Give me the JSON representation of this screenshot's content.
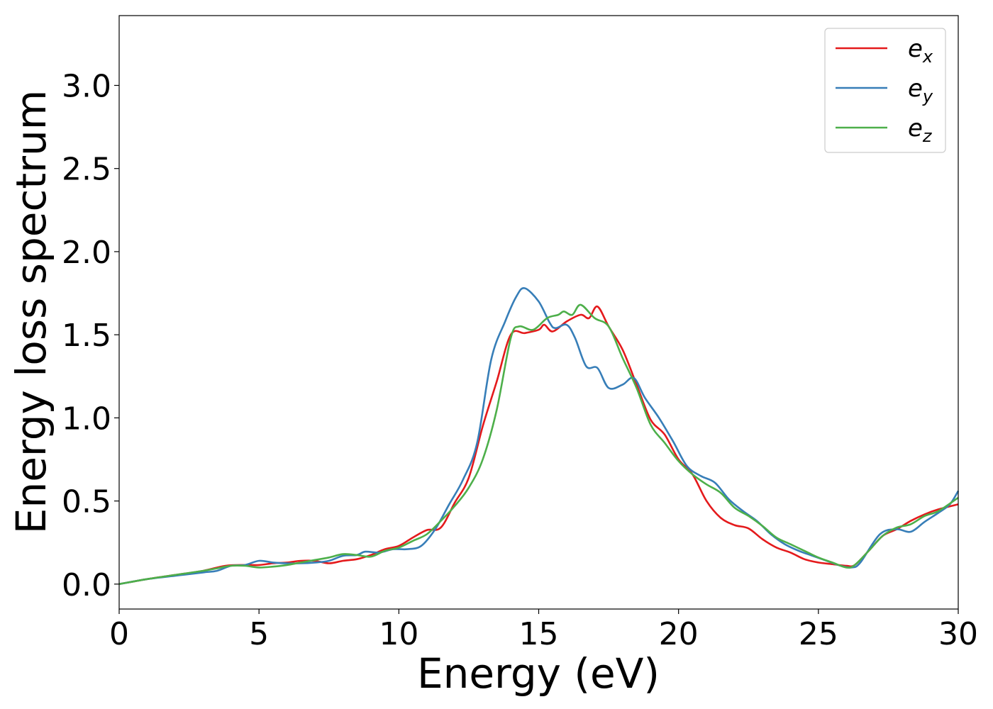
{
  "chart_data": {
    "type": "line",
    "xlabel": "Energy (eV)",
    "ylabel": "Energy loss spectrum",
    "xlim": [
      0,
      30
    ],
    "ylim": [
      -0.15,
      3.42
    ],
    "xticks": [
      0,
      5,
      10,
      15,
      20,
      25,
      30
    ],
    "xtick_labels": [
      "0",
      "5",
      "10",
      "15",
      "20",
      "25",
      "30"
    ],
    "yticks": [
      0.0,
      0.5,
      1.0,
      1.5,
      2.0,
      2.5,
      3.0
    ],
    "ytick_labels": [
      "0.0",
      "0.5",
      "1.0",
      "1.5",
      "2.0",
      "2.5",
      "3.0"
    ],
    "grid": false,
    "legend_position": "top-right",
    "series": [
      {
        "name": "e",
        "subscript": "x",
        "color": "#e41a1c",
        "points": [
          [
            0,
            0
          ],
          [
            1,
            0.03
          ],
          [
            2,
            0.055
          ],
          [
            3,
            0.08
          ],
          [
            3.8,
            0.11
          ],
          [
            4.5,
            0.115
          ],
          [
            5,
            0.115
          ],
          [
            5.5,
            0.125
          ],
          [
            6,
            0.13
          ],
          [
            6.5,
            0.14
          ],
          [
            7,
            0.14
          ],
          [
            7.5,
            0.125
          ],
          [
            8,
            0.14
          ],
          [
            8.5,
            0.15
          ],
          [
            9,
            0.175
          ],
          [
            9.5,
            0.21
          ],
          [
            10,
            0.23
          ],
          [
            10.5,
            0.28
          ],
          [
            11,
            0.325
          ],
          [
            11.5,
            0.34
          ],
          [
            12,
            0.49
          ],
          [
            12.5,
            0.64
          ],
          [
            13,
            0.95
          ],
          [
            13.5,
            1.22
          ],
          [
            14,
            1.5
          ],
          [
            14.5,
            1.51
          ],
          [
            15,
            1.53
          ],
          [
            15.2,
            1.56
          ],
          [
            15.5,
            1.52
          ],
          [
            16,
            1.58
          ],
          [
            16.5,
            1.62
          ],
          [
            16.8,
            1.6
          ],
          [
            17.1,
            1.67
          ],
          [
            17.5,
            1.55
          ],
          [
            18,
            1.41
          ],
          [
            18.5,
            1.2
          ],
          [
            19,
            0.99
          ],
          [
            19.5,
            0.9
          ],
          [
            20,
            0.75
          ],
          [
            20.5,
            0.66
          ],
          [
            21,
            0.5
          ],
          [
            21.5,
            0.4
          ],
          [
            22,
            0.355
          ],
          [
            22.5,
            0.335
          ],
          [
            23,
            0.27
          ],
          [
            23.5,
            0.22
          ],
          [
            24,
            0.19
          ],
          [
            24.5,
            0.15
          ],
          [
            25,
            0.13
          ],
          [
            25.5,
            0.12
          ],
          [
            26,
            0.11
          ],
          [
            26.3,
            0.115
          ],
          [
            26.8,
            0.2
          ],
          [
            27.3,
            0.29
          ],
          [
            27.8,
            0.33
          ],
          [
            28.3,
            0.38
          ],
          [
            28.8,
            0.42
          ],
          [
            29.3,
            0.45
          ],
          [
            30,
            0.48
          ]
        ]
      },
      {
        "name": "e",
        "subscript": "y",
        "color": "#377eb8",
        "points": [
          [
            0,
            0
          ],
          [
            1,
            0.03
          ],
          [
            2,
            0.05
          ],
          [
            3,
            0.07
          ],
          [
            3.5,
            0.08
          ],
          [
            4,
            0.11
          ],
          [
            4.5,
            0.115
          ],
          [
            5,
            0.14
          ],
          [
            5.5,
            0.13
          ],
          [
            6,
            0.125
          ],
          [
            6.5,
            0.125
          ],
          [
            7,
            0.13
          ],
          [
            7.5,
            0.14
          ],
          [
            8,
            0.17
          ],
          [
            8.5,
            0.175
          ],
          [
            8.8,
            0.195
          ],
          [
            9.3,
            0.19
          ],
          [
            9.8,
            0.21
          ],
          [
            10.3,
            0.21
          ],
          [
            10.8,
            0.23
          ],
          [
            11.3,
            0.33
          ],
          [
            11.8,
            0.48
          ],
          [
            12.3,
            0.63
          ],
          [
            12.8,
            0.85
          ],
          [
            13.3,
            1.35
          ],
          [
            13.8,
            1.58
          ],
          [
            14.2,
            1.73
          ],
          [
            14.5,
            1.78
          ],
          [
            15,
            1.7
          ],
          [
            15.4,
            1.57
          ],
          [
            15.6,
            1.54
          ],
          [
            16,
            1.56
          ],
          [
            16.3,
            1.48
          ],
          [
            16.7,
            1.31
          ],
          [
            17.1,
            1.3
          ],
          [
            17.5,
            1.18
          ],
          [
            18,
            1.2
          ],
          [
            18.4,
            1.24
          ],
          [
            18.8,
            1.12
          ],
          [
            19.3,
            1.0
          ],
          [
            19.8,
            0.86
          ],
          [
            20.3,
            0.71
          ],
          [
            20.8,
            0.65
          ],
          [
            21.3,
            0.61
          ],
          [
            21.8,
            0.51
          ],
          [
            22.3,
            0.44
          ],
          [
            22.8,
            0.38
          ],
          [
            23.3,
            0.3
          ],
          [
            23.8,
            0.24
          ],
          [
            24.3,
            0.2
          ],
          [
            24.8,
            0.17
          ],
          [
            25.3,
            0.14
          ],
          [
            25.8,
            0.11
          ],
          [
            26.2,
            0.1
          ],
          [
            26.5,
            0.13
          ],
          [
            27.2,
            0.3
          ],
          [
            27.8,
            0.33
          ],
          [
            28.3,
            0.315
          ],
          [
            28.8,
            0.375
          ],
          [
            29.3,
            0.43
          ],
          [
            29.7,
            0.48
          ],
          [
            30,
            0.56
          ]
        ]
      },
      {
        "name": "e",
        "subscript": "z",
        "color": "#4daf4a",
        "points": [
          [
            0,
            0
          ],
          [
            1,
            0.03
          ],
          [
            2,
            0.055
          ],
          [
            3,
            0.08
          ],
          [
            3.5,
            0.095
          ],
          [
            4,
            0.11
          ],
          [
            4.5,
            0.11
          ],
          [
            5,
            0.1
          ],
          [
            5.5,
            0.105
          ],
          [
            6,
            0.115
          ],
          [
            6.5,
            0.13
          ],
          [
            7,
            0.145
          ],
          [
            7.5,
            0.16
          ],
          [
            8,
            0.18
          ],
          [
            8.5,
            0.175
          ],
          [
            9,
            0.165
          ],
          [
            9.5,
            0.2
          ],
          [
            10,
            0.22
          ],
          [
            10.5,
            0.26
          ],
          [
            11,
            0.3
          ],
          [
            11.5,
            0.38
          ],
          [
            12,
            0.47
          ],
          [
            12.5,
            0.58
          ],
          [
            13,
            0.75
          ],
          [
            13.5,
            1.05
          ],
          [
            14,
            1.48
          ],
          [
            14.3,
            1.55
          ],
          [
            14.8,
            1.53
          ],
          [
            15.3,
            1.6
          ],
          [
            15.7,
            1.62
          ],
          [
            15.9,
            1.64
          ],
          [
            16.2,
            1.62
          ],
          [
            16.5,
            1.68
          ],
          [
            17,
            1.6
          ],
          [
            17.5,
            1.55
          ],
          [
            18,
            1.36
          ],
          [
            18.5,
            1.18
          ],
          [
            19,
            0.96
          ],
          [
            19.5,
            0.85
          ],
          [
            20,
            0.74
          ],
          [
            20.5,
            0.66
          ],
          [
            21,
            0.6
          ],
          [
            21.5,
            0.55
          ],
          [
            22,
            0.46
          ],
          [
            22.5,
            0.41
          ],
          [
            23,
            0.35
          ],
          [
            23.5,
            0.28
          ],
          [
            24,
            0.24
          ],
          [
            24.5,
            0.2
          ],
          [
            25,
            0.16
          ],
          [
            25.5,
            0.13
          ],
          [
            26,
            0.1
          ],
          [
            26.3,
            0.115
          ],
          [
            26.8,
            0.2
          ],
          [
            27.3,
            0.29
          ],
          [
            27.8,
            0.34
          ],
          [
            28.3,
            0.36
          ],
          [
            28.8,
            0.41
          ],
          [
            29.3,
            0.44
          ],
          [
            30,
            0.52
          ]
        ]
      }
    ]
  }
}
